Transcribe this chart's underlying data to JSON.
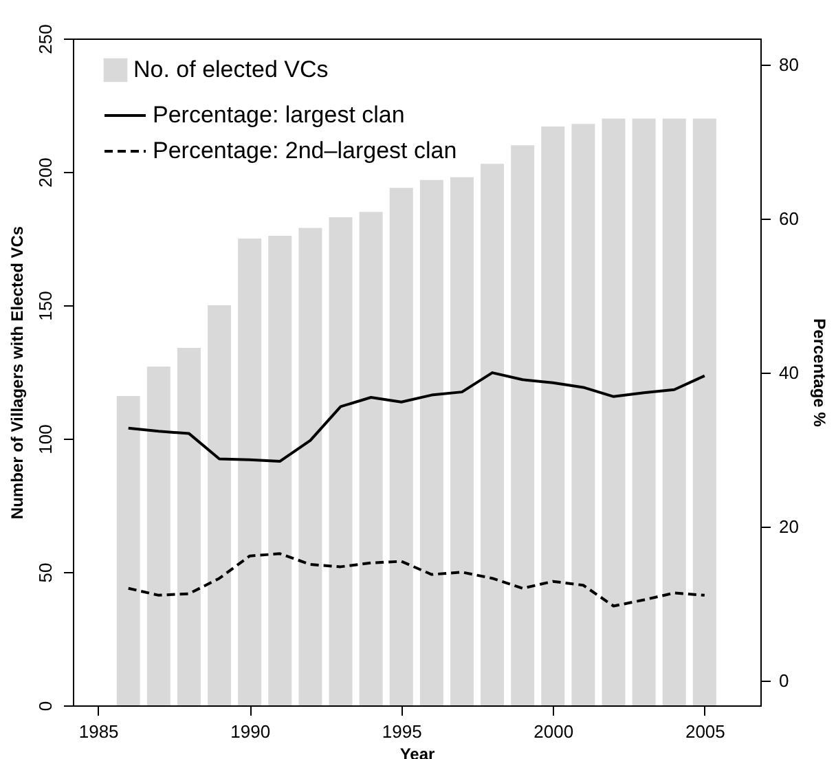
{
  "chart_data": {
    "type": "bar",
    "xlabel": "Year",
    "ylabel": "Number of Villagers with Elected VCs",
    "y2label": "Percentage %",
    "xlim": [
      1984.17,
      2006.84
    ],
    "xticks": [
      1985,
      1990,
      1995,
      2000,
      2005
    ],
    "ylim": [
      0,
      250
    ],
    "yticks": [
      0,
      50,
      100,
      150,
      200,
      250
    ],
    "y2lim": [
      -3.2,
      83.4
    ],
    "y2ticks": [
      0,
      20,
      40,
      60,
      80
    ],
    "grid": false,
    "legend": "top left",
    "series": [
      {
        "name": "No. of elected VCs",
        "color": "#d9d9d9",
        "x": [
          1986,
          1987,
          1988,
          1989,
          1990,
          1991,
          1992,
          1993,
          1994,
          1995,
          1996,
          1997,
          1998,
          1999,
          2000,
          2001,
          2002,
          2003,
          2004,
          2005
        ],
        "values": [
          116,
          127,
          134,
          150,
          175,
          176,
          179,
          183,
          185,
          194,
          197,
          198,
          203,
          210,
          217,
          218,
          220,
          220,
          220,
          220
        ]
      },
      {
        "name": "Percentage: largest clan",
        "type": "line",
        "axis": "y2",
        "color": "#000000",
        "line_style": "solid",
        "x": [
          1986,
          1987,
          1988,
          1989,
          1990,
          1991,
          1992,
          1993,
          1994,
          1995,
          1996,
          1997,
          1998,
          1999,
          2000,
          2001,
          2002,
          2003,
          2004,
          2005
        ],
        "values": [
          32.8,
          32.4,
          32.1,
          28.8,
          28.7,
          28.5,
          31.2,
          35.6,
          36.8,
          36.2,
          37.1,
          37.5,
          40.0,
          39.1,
          38.7,
          38.1,
          36.9,
          37.4,
          37.8,
          39.6
        ]
      },
      {
        "name": "Percentage: 2nd–largest clan",
        "type": "line",
        "axis": "y2",
        "color": "#000000",
        "line_style": "dashed",
        "x": [
          1986,
          1987,
          1988,
          1989,
          1990,
          1991,
          1992,
          1993,
          1994,
          1995,
          1996,
          1997,
          1998,
          1999,
          2000,
          2001,
          2002,
          2003,
          2004,
          2005
        ],
        "values": [
          12.0,
          11.1,
          11.3,
          13.3,
          16.2,
          16.5,
          15.1,
          14.8,
          15.3,
          15.5,
          13.8,
          14.1,
          13.3,
          12.0,
          12.9,
          12.4,
          9.7,
          10.5,
          11.4,
          11.1
        ]
      }
    ]
  }
}
